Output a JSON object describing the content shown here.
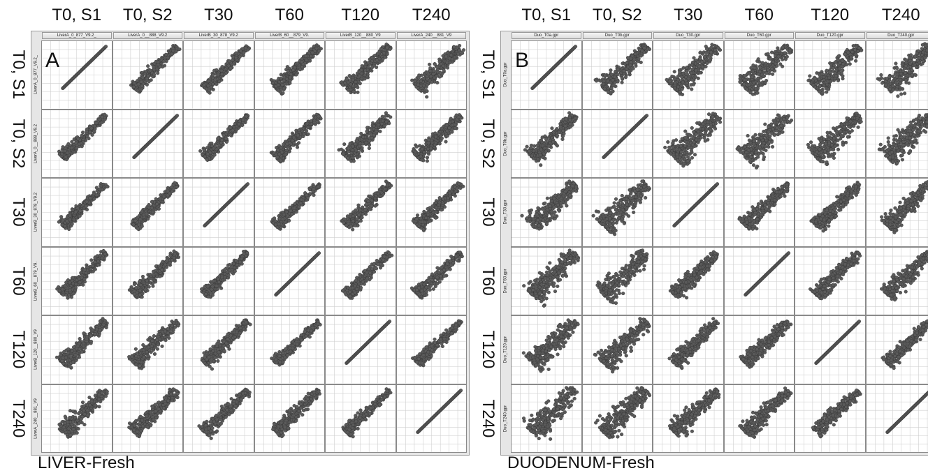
{
  "panels": [
    {
      "letter": "A",
      "caption": "LIVER-Fresh",
      "col_headers": [
        "T0, S1",
        "T0, S2",
        "T30",
        "T60",
        "T120",
        "T240"
      ],
      "row_headers": [
        "T0, S1",
        "T0, S2",
        "T30",
        "T60",
        "T120",
        "T240"
      ],
      "file_labels": [
        "LiverA_0_877_V9.2_",
        "LiverA_0__888_V9.2",
        "LiverB_30_878_V9.2",
        "LiverB_60__879_V9.",
        "LiverB_120__880_V9",
        "LiverA_240__881_V9"
      ]
    },
    {
      "letter": "B",
      "caption": "DUODENUM-Fresh",
      "col_headers": [
        "T0, S1",
        "T0, S2",
        "T30",
        "T60",
        "T120",
        "T240"
      ],
      "row_headers": [
        "T0, S1",
        "T0, S2",
        "T30",
        "T60",
        "T120",
        "T240"
      ],
      "file_labels": [
        "Duo_T0a.gpr",
        "Duo_T0b.gpr",
        "Duo_T30.gpr",
        "Duo_T60.gpr",
        "Duo_T120.gpr",
        "Duo_T240.gpr"
      ]
    }
  ],
  "colors": {
    "point": "#5a5a5a",
    "point_edge": "#333333",
    "grid": "#cfcfcf",
    "cell_bg": "#ffffff"
  },
  "chart_data": [
    {
      "type": "scatter",
      "matrix": "6x6 pairwise scatterplot matrix",
      "variables": [
        "LiverA_0_877_V9.2_",
        "LiverA_0__888_V9.2",
        "LiverB_30_878_V9.2",
        "LiverB_60__879_V9.",
        "LiverB_120__880_V9",
        "LiverA_240__881_V9"
      ],
      "diagonal": "identity line (perfect correlation)",
      "spread": [
        [
          0,
          0.1,
          0.1,
          0.12,
          0.14,
          0.16
        ],
        [
          0.1,
          0,
          0.1,
          0.12,
          0.14,
          0.14
        ],
        [
          0.1,
          0.1,
          0,
          0.1,
          0.12,
          0.12
        ],
        [
          0.12,
          0.12,
          0.1,
          0,
          0.1,
          0.12
        ],
        [
          0.14,
          0.14,
          0.12,
          0.1,
          0,
          0.1
        ],
        [
          0.16,
          0.14,
          0.12,
          0.12,
          0.1,
          0
        ]
      ]
    },
    {
      "type": "scatter",
      "matrix": "6x6 pairwise scatterplot matrix",
      "variables": [
        "Duo_T0a.gpr",
        "Duo_T0b.gpr",
        "Duo_T30.gpr",
        "Duo_T60.gpr",
        "Duo_T120.gpr",
        "Duo_T240.gpr"
      ],
      "diagonal": "identity line (perfect correlation)",
      "spread": [
        [
          0,
          0.16,
          0.2,
          0.22,
          0.2,
          0.22
        ],
        [
          0.16,
          0,
          0.22,
          0.22,
          0.2,
          0.22
        ],
        [
          0.2,
          0.22,
          0,
          0.14,
          0.14,
          0.16
        ],
        [
          0.22,
          0.22,
          0.14,
          0,
          0.14,
          0.16
        ],
        [
          0.2,
          0.2,
          0.14,
          0.14,
          0,
          0.12
        ],
        [
          0.22,
          0.22,
          0.16,
          0.16,
          0.12,
          0
        ]
      ]
    }
  ]
}
